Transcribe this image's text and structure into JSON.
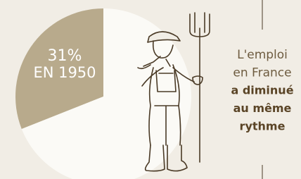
{
  "chart_data": {
    "type": "pie",
    "values": [
      31,
      69
    ],
    "value_labels": [
      "31%",
      null
    ],
    "slice_labels": [
      "EN 1950",
      null
    ],
    "colors": [
      "#b8aa8c",
      "#fbfaf6"
    ],
    "caption": {
      "lines": [
        "L'emploi",
        "en France",
        "a diminué",
        "au même",
        "rythme"
      ],
      "bold": [
        false,
        false,
        true,
        true,
        true
      ]
    }
  }
}
